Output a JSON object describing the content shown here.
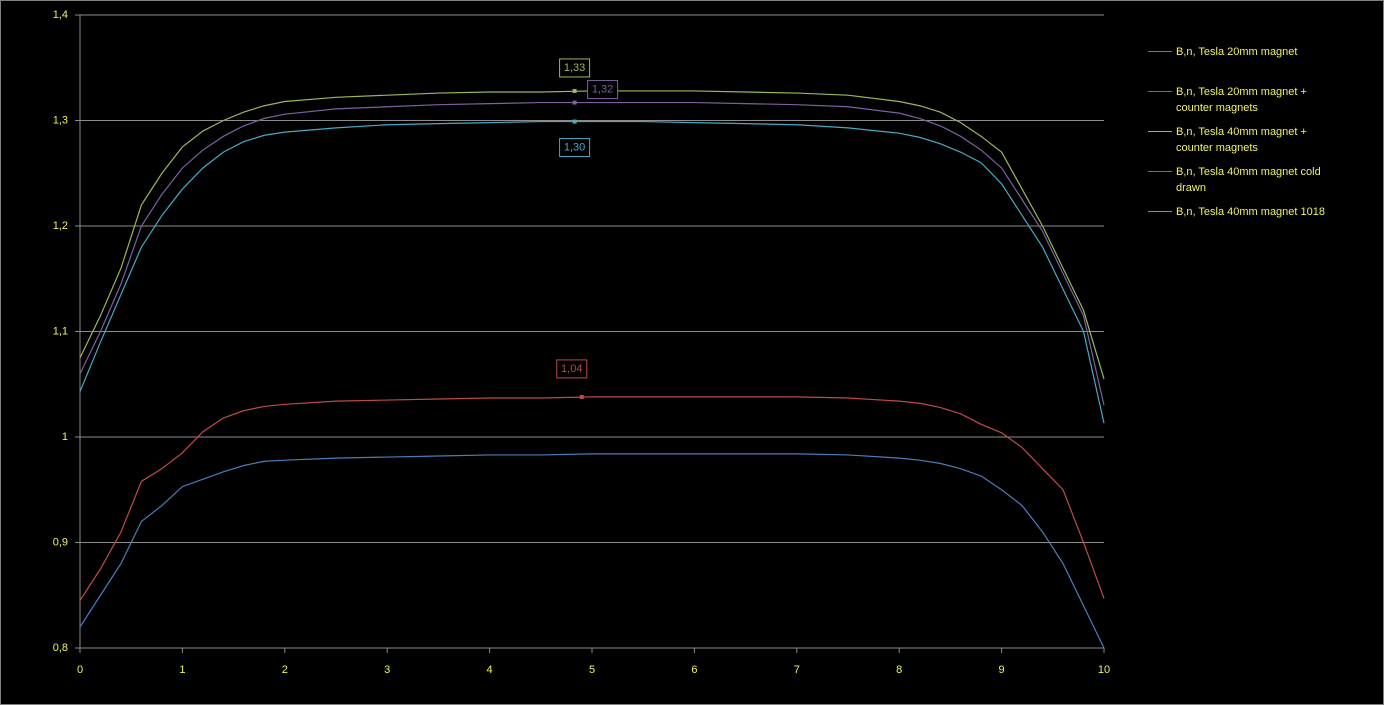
{
  "chart_data": {
    "type": "line",
    "x": [
      0,
      0.2,
      0.4,
      0.6,
      0.8,
      1,
      1.2,
      1.4,
      1.6,
      1.8,
      2,
      2.5,
      3,
      3.5,
      4,
      4.5,
      5,
      5.5,
      6,
      6.5,
      7,
      7.5,
      8,
      8.2,
      8.4,
      8.6,
      8.8,
      9,
      9.2,
      9.4,
      9.6,
      9.8,
      10
    ],
    "series": [
      {
        "name": "B,n, Tesla 20mm magnet",
        "color": "#4a7ebb",
        "values": [
          0.82,
          0.85,
          0.88,
          0.92,
          0.935,
          0.953,
          0.96,
          0.967,
          0.973,
          0.977,
          0.978,
          0.98,
          0.981,
          0.982,
          0.983,
          0.983,
          0.984,
          0.984,
          0.984,
          0.984,
          0.984,
          0.983,
          0.98,
          0.978,
          0.975,
          0.97,
          0.963,
          0.95,
          0.935,
          0.91,
          0.88,
          0.84,
          0.8
        ]
      },
      {
        "name": "B,n, Tesla 20mm magnet + counter magnets",
        "color": "#be4b48",
        "values": [
          0.845,
          0.875,
          0.91,
          0.958,
          0.97,
          0.985,
          1.005,
          1.018,
          1.025,
          1.029,
          1.031,
          1.034,
          1.035,
          1.036,
          1.037,
          1.037,
          1.038,
          1.038,
          1.038,
          1.038,
          1.038,
          1.037,
          1.034,
          1.032,
          1.028,
          1.022,
          1.012,
          1.004,
          0.99,
          0.97,
          0.95,
          0.9,
          0.847
        ]
      },
      {
        "name": "B,n, Tesla 40mm magnet + counter magnets",
        "color": "#98b954",
        "values": [
          1.075,
          1.115,
          1.16,
          1.22,
          1.25,
          1.275,
          1.29,
          1.3,
          1.308,
          1.314,
          1.318,
          1.322,
          1.324,
          1.326,
          1.327,
          1.327,
          1.328,
          1.328,
          1.328,
          1.327,
          1.326,
          1.324,
          1.318,
          1.314,
          1.308,
          1.298,
          1.285,
          1.27,
          1.235,
          1.2,
          1.16,
          1.12,
          1.055
        ]
      },
      {
        "name": "B,n, Tesla 40mm magnet cold drawn",
        "color": "#7d60a0",
        "values": [
          1.06,
          1.1,
          1.145,
          1.2,
          1.23,
          1.255,
          1.272,
          1.285,
          1.295,
          1.302,
          1.306,
          1.311,
          1.313,
          1.315,
          1.316,
          1.317,
          1.317,
          1.317,
          1.317,
          1.316,
          1.315,
          1.313,
          1.307,
          1.302,
          1.295,
          1.285,
          1.272,
          1.255,
          1.225,
          1.195,
          1.155,
          1.115,
          1.03
        ]
      },
      {
        "name": "B,n, Tesla 40mm magnet 1018",
        "color": "#46aac5",
        "values": [
          1.043,
          1.09,
          1.135,
          1.18,
          1.21,
          1.235,
          1.255,
          1.27,
          1.28,
          1.286,
          1.289,
          1.293,
          1.296,
          1.297,
          1.298,
          1.299,
          1.299,
          1.299,
          1.298,
          1.297,
          1.296,
          1.293,
          1.288,
          1.284,
          1.278,
          1.27,
          1.26,
          1.24,
          1.21,
          1.18,
          1.14,
          1.1,
          1.013
        ]
      }
    ],
    "annotations": [
      {
        "x": 4.83,
        "y": 1.328,
        "label": "1,33",
        "color": "#98b954"
      },
      {
        "x": 4.83,
        "y": 1.317,
        "label": "1,32",
        "color": "#7d60a0"
      },
      {
        "x": 4.83,
        "y": 1.299,
        "label": "1,30",
        "color": "#46aac5"
      },
      {
        "x": 4.9,
        "y": 1.038,
        "label": "1,04",
        "color": "#be4b48"
      }
    ],
    "xlim": [
      0,
      10
    ],
    "xticks": [
      0,
      1,
      2,
      3,
      4,
      5,
      6,
      7,
      8,
      9,
      10
    ],
    "ylim": [
      0.8,
      1.4
    ],
    "yticks": [
      {
        "value": 0.8,
        "label": "0,8"
      },
      {
        "value": 0.9,
        "label": "0,9"
      },
      1,
      {
        "value": 1.1,
        "label": "1,1"
      },
      {
        "value": 1.2,
        "label": "1,2"
      },
      {
        "value": 1.3,
        "label": "1,3"
      },
      {
        "value": 1.4,
        "label": "1,4"
      }
    ],
    "grid": true,
    "legend": "right"
  }
}
